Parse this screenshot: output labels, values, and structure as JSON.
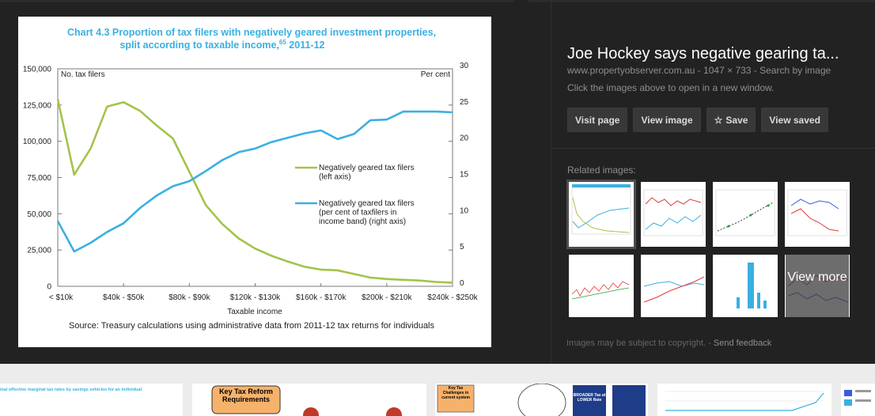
{
  "chart_data": {
    "type": "line",
    "title": "Chart 4.3 Proportion of tax filers with negatively geared investment properties,",
    "title_line2": "split according to taxable income,",
    "title_footnote": "65",
    "title_year": " 2011-12",
    "xlabel": "Taxable income",
    "ylabel_left": "No. tax filers",
    "ylabel_right": "Per cent",
    "source": "Source: Treasury calculations using administrative data from 2011-12 tax returns for individuals",
    "ylim_left": [
      0,
      150000
    ],
    "ylim_right": [
      0,
      30
    ],
    "grid": false,
    "legend_position": "center-right",
    "left_ticks": [
      "0",
      "25,000",
      "50,000",
      "75,000",
      "100,000",
      "125,000",
      "150,000"
    ],
    "right_ticks": [
      "0",
      "5",
      "10",
      "15",
      "20",
      "25",
      "30"
    ],
    "x_tick_labels": [
      "< $10k",
      "$40k - $50k",
      "$80k - $90k",
      "$120k - $130k",
      "$160k - $170k",
      "$200k - $210k",
      "$240k - $250k"
    ],
    "x_tick_index": [
      0,
      4,
      8,
      12,
      16,
      20,
      24
    ],
    "x_count": 25,
    "series": [
      {
        "name": "Negatively geared tax filers (left axis)",
        "legend_lines": [
          "Negatively geared tax filers",
          "(left axis)"
        ],
        "color": "#a4c34a",
        "axis": "left",
        "values": [
          129000,
          77000,
          95000,
          124000,
          127000,
          121000,
          111000,
          102000,
          79000,
          56000,
          43000,
          33000,
          26000,
          21000,
          17000,
          13500,
          11500,
          11000,
          8500,
          6000,
          5000,
          4500,
          4000,
          3000,
          2500
        ]
      },
      {
        "name": "Negatively geared tax filers (per cent of taxfilers in income band) (right axis)",
        "legend_lines": [
          "Negatively geared tax filers",
          "(per cent of taxfilers in",
          "income band) (right axis)"
        ],
        "color": "#3ab0e2",
        "axis": "right",
        "values": [
          9.0,
          4.8,
          6.0,
          7.5,
          8.7,
          10.8,
          12.5,
          13.8,
          14.5,
          15.9,
          17.4,
          18.5,
          19.0,
          19.9,
          20.5,
          21.1,
          21.5,
          20.3,
          21.0,
          22.9,
          23.0,
          24.1,
          24.1,
          24.1,
          24.0
        ]
      }
    ]
  },
  "sidebar": {
    "title": "Joe Hockey says negative gearing ta...",
    "meta": "www.propertyobserver.com.au - 1047 × 733 - Search by image",
    "hint": "Click the images above to open in a new window.",
    "buttons": {
      "visit_page": "Visit page",
      "view_image": "View image",
      "save": "Save",
      "view_saved": "View saved"
    },
    "related_label": "Related images:",
    "view_more": "View more",
    "footnote": "Images may be subject to copyright.",
    "feedback": "Send feedback"
  },
  "bottom_strip": {
    "thumb1_text": "inal effective marginal tax rates by savings vehicles for an individual",
    "thumb2_text": "Key Tax Reform Requirements",
    "thumb3_text": "Key Tax Challenges in current system",
    "thumb4_text": "BROADER Tax at LOWER Rate"
  }
}
